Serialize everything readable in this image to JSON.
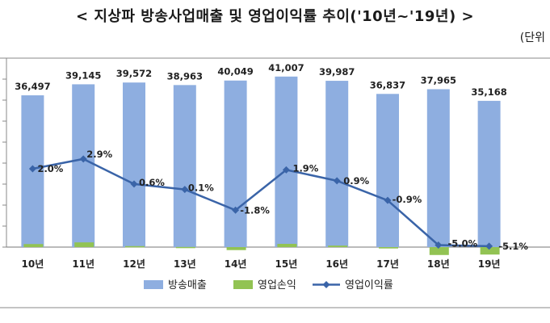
{
  "title": "< 지상파 방송사업매출 및 영업이익률 추이('10년~'19년) >",
  "unit": "(단위",
  "chart_data": {
    "type": "bar",
    "title": "< 지상파 방송사업매출 및 영업이익률 추이('10년~'19년) >",
    "categories": [
      "10년",
      "11년",
      "12년",
      "13년",
      "14년",
      "15년",
      "16년",
      "17년",
      "18년",
      "19년"
    ],
    "series": [
      {
        "name": "방송매출",
        "type": "bar",
        "color": "#8eaee0",
        "values": [
          36497,
          39145,
          39572,
          38963,
          40049,
          41007,
          39987,
          36837,
          37965,
          35168
        ],
        "labels": [
          "36,497",
          "39,145",
          "39,572",
          "38,963",
          "40,049",
          "41,007",
          "39,987",
          "36,837",
          "37,965",
          "35,168"
        ]
      },
      {
        "name": "영업손익",
        "type": "bar",
        "color": "#92c353",
        "values": [
          730,
          1135,
          238,
          39,
          -721,
          779,
          360,
          -331,
          -1898,
          -1794
        ]
      },
      {
        "name": "영업이익률",
        "type": "line",
        "color": "#3a64a8",
        "values": [
          2.0,
          2.9,
          0.6,
          0.1,
          -1.8,
          1.9,
          0.9,
          -0.9,
          -5.0,
          -5.1
        ],
        "labels": [
          "2.0%",
          "2.9%",
          "0.6%",
          "0.1%",
          "-1.8%",
          "1.9%",
          "0.9%",
          "-0.9%",
          "-5.0%",
          "-5.1%"
        ]
      }
    ],
    "legend": [
      "방송매출",
      "영업손익",
      "영업이익률"
    ],
    "legend_position": "bottom"
  }
}
